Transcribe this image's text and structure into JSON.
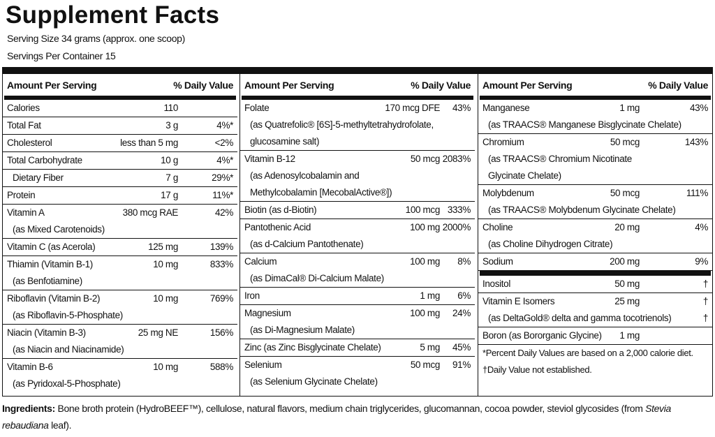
{
  "header": {
    "title": "Supplement Facts",
    "serving_size": "Serving Size 34 grams (approx. one scoop)",
    "servings_per_container": "Servings Per Container 15"
  },
  "columns": [
    {
      "amount_heading": "Amount Per Serving",
      "dv_heading": "% Daily Value",
      "groups": [
        [
          {
            "name": "Calories",
            "amount": "110"
          },
          {
            "name": "Total Fat",
            "amount": "3 g",
            "dv": "4%*"
          },
          {
            "name": "Cholesterol",
            "amount": "less than 5 mg",
            "dv": "<2%"
          },
          {
            "name": "Total Carbohydrate",
            "amount": "10 g",
            "dv": "4%*"
          },
          {
            "name": "Dietary Fiber",
            "amount": "7 g",
            "dv": "29%*",
            "indent": true
          },
          {
            "name": "Protein",
            "amount": "17 g",
            "dv": "11%*"
          },
          {
            "name": "Vitamin A",
            "amount": "380 mcg RAE",
            "dv": "42%",
            "lines": [
              "(as Mixed Carotenoids)"
            ]
          },
          {
            "name": "Vitamin C (as Acerola)",
            "amount": "125 mg",
            "dv": "139%"
          },
          {
            "name": "Thiamin (Vitamin B-1)",
            "amount": "10 mg",
            "dv": "833%",
            "lines": [
              "(as Benfotiamine)"
            ]
          },
          {
            "name": "Riboflavin (Vitamin B-2)",
            "amount": "10 mg",
            "dv": "769%",
            "lines": [
              "(as Riboflavin-5-Phosphate)"
            ]
          },
          {
            "name": "Niacin (Vitamin B-3)",
            "amount": "25 mg NE",
            "dv": "156%",
            "lines": [
              "(as Niacin and Niacinamide)"
            ]
          },
          {
            "name": "Vitamin B-6",
            "amount": "10 mg",
            "dv": "588%",
            "lines": [
              "(as Pyridoxal-5-Phosphate)"
            ]
          }
        ]
      ]
    },
    {
      "amount_heading": "Amount Per Serving",
      "dv_heading": "% Daily Value",
      "groups": [
        [
          {
            "name": "Folate",
            "amount": "170 mcg DFE",
            "dv": "43%",
            "lines": [
              "(as Quatrefolic® [6S]-5-methyltetrahydrofolate,",
              "glucosamine salt)"
            ]
          },
          {
            "name": "Vitamin B-12",
            "amount": "50 mcg",
            "dv": "2083%",
            "lines": [
              "(as Adenosylcobalamin and",
              "Methylcobalamin [MecobalActive®])"
            ]
          },
          {
            "name": "Biotin (as d-Biotin)",
            "amount": "100 mcg",
            "dv": "333%"
          },
          {
            "name": "Pantothenic Acid",
            "amount": "100 mg",
            "dv": "2000%",
            "lines": [
              "(as d-Calcium Pantothenate)"
            ]
          },
          {
            "name": "Calcium",
            "amount": "100 mg",
            "dv": "8%",
            "lines": [
              "(as DimaCal® Di-Calcium Malate)"
            ]
          },
          {
            "name": "Iron",
            "amount": "1 mg",
            "dv": "6%"
          },
          {
            "name": "Magnesium",
            "amount": "100 mg",
            "dv": "24%",
            "lines": [
              "(as Di-Magnesium Malate)"
            ]
          },
          {
            "name": "Zinc (as Zinc Bisglycinate Chelate)",
            "amount": "5 mg",
            "dv": "45%"
          },
          {
            "name": "Selenium",
            "amount": "50 mcg",
            "dv": "91%",
            "lines": [
              "(as Selenium Glycinate Chelate)"
            ]
          }
        ]
      ]
    },
    {
      "amount_heading": "Amount Per Serving",
      "dv_heading": "% Daily Value",
      "groups": [
        [
          {
            "name": "Manganese",
            "amount": "1 mg",
            "dv": "43%",
            "lines": [
              "(as TRAACS® Manganese Bisglycinate Chelate)"
            ]
          },
          {
            "name": "Chromium",
            "amount": "50 mcg",
            "dv": "143%",
            "lines": [
              "(as TRAACS® Chromium Nicotinate",
              "Glycinate Chelate)"
            ]
          },
          {
            "name": "Molybdenum",
            "amount": "50 mcg",
            "dv": "111%",
            "lines": [
              "(as TRAACS® Molybdenum Glycinate Chelate)"
            ]
          },
          {
            "name": "Choline",
            "amount": "20 mg",
            "dv": "4%",
            "lines": [
              "(as Choline Dihydrogen Citrate)"
            ]
          },
          {
            "name": "Sodium",
            "amount": "200 mg",
            "dv": "9%"
          }
        ],
        [
          {
            "name": "Inositol",
            "amount": "50 mg",
            "dv": "†"
          },
          {
            "name": "Vitamin E Isomers",
            "amount": "25 mg",
            "dv": "†",
            "lines": [
              {
                "text": "(as DeltaGold® delta and gamma tocotrienols)",
                "dv": "†"
              }
            ]
          },
          {
            "name": "Boron (as Bororganic Glycine)",
            "amount": "1 mg"
          }
        ]
      ],
      "notes": [
        "*Percent Daily Values are based on a 2,000 calorie diet.",
        "†Daily Value not established."
      ]
    }
  ],
  "ingredients": {
    "label": "Ingredients:",
    "parts": [
      {
        "text": " Bone broth protein (HydroBEEF™), cellulose, natural flavors, medium chain triglycerides, glucomannan, cocoa powder, steviol glycosides (from "
      },
      {
        "text": "Stevia rebaudiana",
        "italic": true
      },
      {
        "text": " leaf)."
      }
    ]
  }
}
